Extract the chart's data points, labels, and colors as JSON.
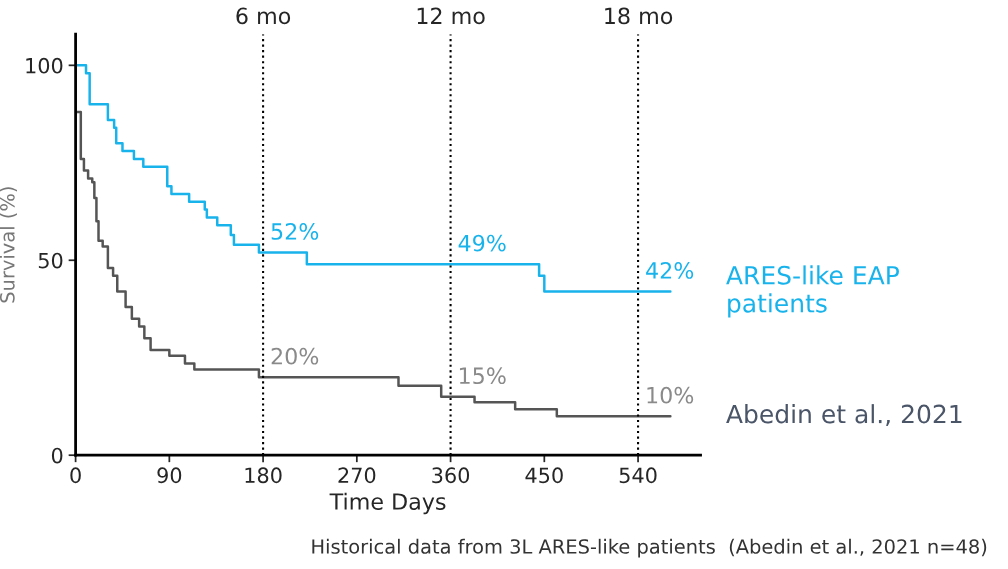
{
  "chart_data": {
    "type": "step",
    "ylabel": "Survival (%)",
    "xlabel": "Time Days",
    "xlim": [
      0,
      600
    ],
    "xticks": [
      0,
      90,
      180,
      270,
      360,
      450,
      540
    ],
    "ylim": [
      0,
      108
    ],
    "yticks": [
      0,
      50,
      100
    ],
    "grid": false,
    "legend": false,
    "ref_lines": [
      {
        "axis": "x",
        "value": 180,
        "label": "6 mo",
        "line_style": "dotted",
        "color": "#000000"
      },
      {
        "axis": "x",
        "value": 360,
        "label": "12 mo",
        "line_style": "dotted",
        "color": "#000000"
      },
      {
        "axis": "x",
        "value": 540,
        "label": "18 mo",
        "line_style": "dotted",
        "color": "#000000"
      }
    ],
    "series": [
      {
        "name": "ARES-like EAP patients",
        "color": "#19b3ec",
        "x": [
          0,
          10,
          13.5,
          31,
          37,
          39,
          45,
          56,
          65,
          88,
          92,
          109,
          124,
          126,
          136,
          149,
          152,
          176,
          180,
          222,
          360,
          445,
          450,
          540,
          571
        ],
        "values": [
          100,
          98,
          90,
          86,
          84,
          80,
          78,
          76,
          74,
          69,
          67,
          65,
          63,
          61,
          59,
          56.5,
          54,
          52,
          52,
          49,
          49,
          46,
          42,
          42,
          42
        ],
        "value_labels": [
          null,
          null,
          null,
          null,
          null,
          null,
          null,
          null,
          null,
          null,
          null,
          null,
          null,
          null,
          null,
          null,
          null,
          null,
          "52%",
          null,
          "49%",
          null,
          null,
          "42%",
          null
        ]
      },
      {
        "name": "Abedin et al., 2021",
        "color": "#555555",
        "x": [
          0,
          5,
          8,
          12,
          16,
          18,
          20,
          22,
          26,
          31,
          36,
          40,
          48,
          54,
          61,
          66,
          72,
          90,
          105,
          114,
          176,
          180,
          310,
          351,
          360,
          383,
          422,
          462,
          540,
          571
        ],
        "values": [
          88,
          76,
          73,
          71,
          70,
          66,
          60,
          55,
          53.5,
          48,
          46,
          42,
          38,
          35,
          33,
          30,
          27,
          25.5,
          23.5,
          22,
          20,
          20,
          17.8,
          15,
          15,
          13.6,
          11.8,
          10,
          10,
          10
        ],
        "value_labels": [
          null,
          null,
          null,
          null,
          null,
          null,
          null,
          null,
          null,
          null,
          null,
          null,
          null,
          null,
          null,
          null,
          null,
          null,
          null,
          null,
          null,
          "20%",
          null,
          null,
          "15%",
          null,
          null,
          null,
          "10%",
          null
        ]
      }
    ],
    "annotations": [
      "Historical data from 3L ARES-like patients  (Abedin et al., 2021 n=48)"
    ]
  }
}
